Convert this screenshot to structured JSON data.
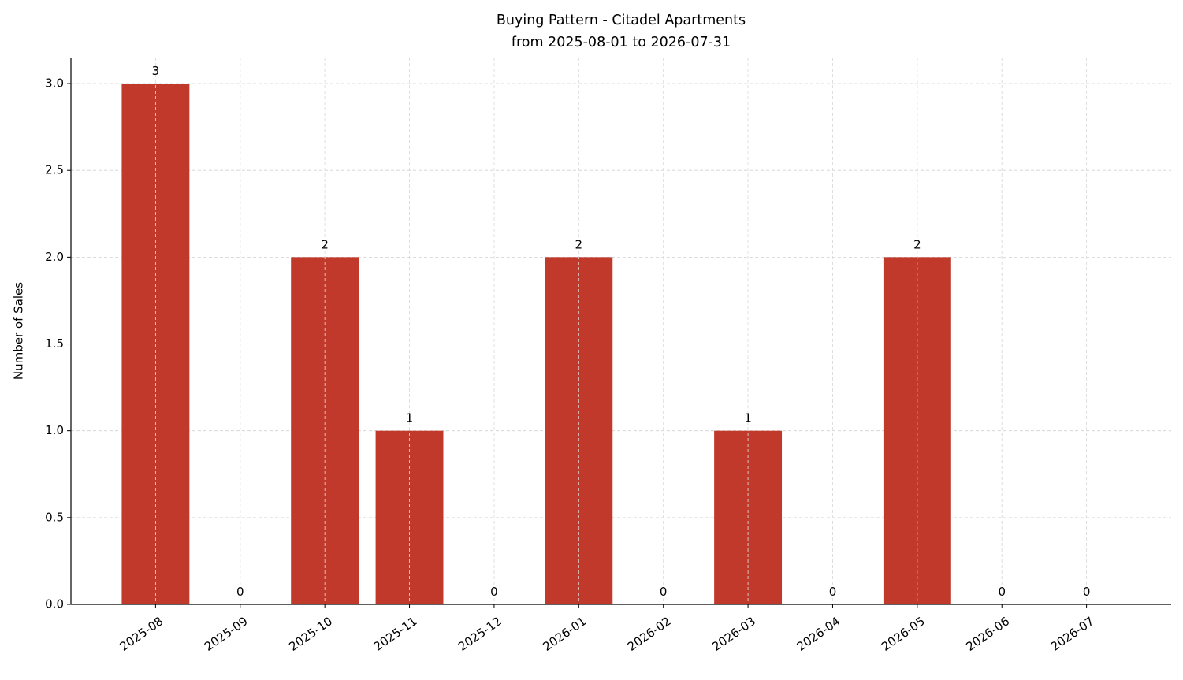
{
  "chart_data": {
    "type": "bar",
    "title": "Buying Pattern - Citadel Apartments",
    "subtitle": "from 2025-08-01 to 2026-07-31",
    "y_label": "Number of Sales",
    "categories": [
      "2025-08",
      "2025-09",
      "2025-10",
      "2025-11",
      "2025-12",
      "2026-01",
      "2026-02",
      "2026-03",
      "2026-04",
      "2026-05",
      "2026-06",
      "2026-07"
    ],
    "values": [
      3,
      0,
      2,
      1,
      0,
      2,
      0,
      1,
      0,
      2,
      0,
      0
    ],
    "color": "#c0392b",
    "ylim": [
      0,
      3.15
    ],
    "yticks": [
      {
        "value": 0,
        "label": "0.0"
      },
      {
        "value": 0.5,
        "label": "0.5"
      },
      {
        "value": 1,
        "label": "1.0"
      },
      {
        "value": 1.5,
        "label": "1.5"
      },
      {
        "value": 2,
        "label": "2.0"
      },
      {
        "value": 2.5,
        "label": "2.5"
      },
      {
        "value": 3,
        "label": "3.0"
      }
    ],
    "grid": true
  }
}
